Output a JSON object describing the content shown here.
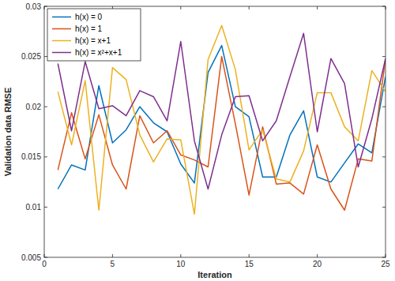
{
  "chart_data": {
    "type": "line",
    "x_label": "Iteration",
    "y_label": "Validation data RMSE",
    "x": [
      1,
      2,
      3,
      4,
      5,
      6,
      7,
      8,
      9,
      10,
      11,
      12,
      13,
      14,
      15,
      16,
      17,
      18,
      19,
      20,
      21,
      22,
      23,
      24,
      25
    ],
    "series": [
      {
        "name": "h(x) = 0",
        "color": "#0072bd",
        "values": [
          0.0118,
          0.0142,
          0.0137,
          0.0221,
          0.0164,
          0.0177,
          0.02,
          0.0184,
          0.0175,
          0.0143,
          0.0124,
          0.0234,
          0.0261,
          0.02,
          0.019,
          0.013,
          0.013,
          0.0172,
          0.0196,
          0.013,
          0.0125,
          0.0144,
          0.0163,
          0.0154,
          0.023
        ]
      },
      {
        "name": "h(x) = 1",
        "color": "#d95319",
        "values": [
          0.0137,
          0.0194,
          0.0148,
          0.0192,
          0.0142,
          0.0118,
          0.0191,
          0.0164,
          0.0176,
          0.0152,
          0.0147,
          0.014,
          0.025,
          0.0183,
          0.0112,
          0.018,
          0.0123,
          0.0124,
          0.0113,
          0.0162,
          0.0118,
          0.0097,
          0.0148,
          0.0146,
          0.0248
        ]
      },
      {
        "name": "h(x) = x+1",
        "color": "#edb120",
        "values": [
          0.0215,
          0.0162,
          0.0226,
          0.0097,
          0.0239,
          0.0227,
          0.0172,
          0.0145,
          0.0168,
          0.0167,
          0.0093,
          0.0247,
          0.0281,
          0.0237,
          0.0157,
          0.0177,
          0.0128,
          0.0125,
          0.0156,
          0.0214,
          0.0214,
          0.018,
          0.0166,
          0.0236,
          0.0215
        ]
      },
      {
        "name": "h(x) = x²+x+1",
        "color": "#7e2f8e",
        "values": [
          0.0243,
          0.0176,
          0.0245,
          0.0198,
          0.0201,
          0.0191,
          0.0216,
          0.021,
          0.0186,
          0.0265,
          0.0166,
          0.0118,
          0.0172,
          0.021,
          0.0211,
          0.0166,
          0.0186,
          0.023,
          0.0273,
          0.0175,
          0.0248,
          0.0223,
          0.014,
          0.0188,
          0.0248
        ]
      }
    ],
    "xlim": [
      0,
      25
    ],
    "xticks": [
      0,
      5,
      10,
      15,
      20,
      25
    ],
    "ylim": [
      0.005,
      0.03
    ],
    "yticks": [
      0.005,
      0.01,
      0.015,
      0.02,
      0.025,
      0.03
    ],
    "grid": false,
    "legend": "upper left"
  }
}
